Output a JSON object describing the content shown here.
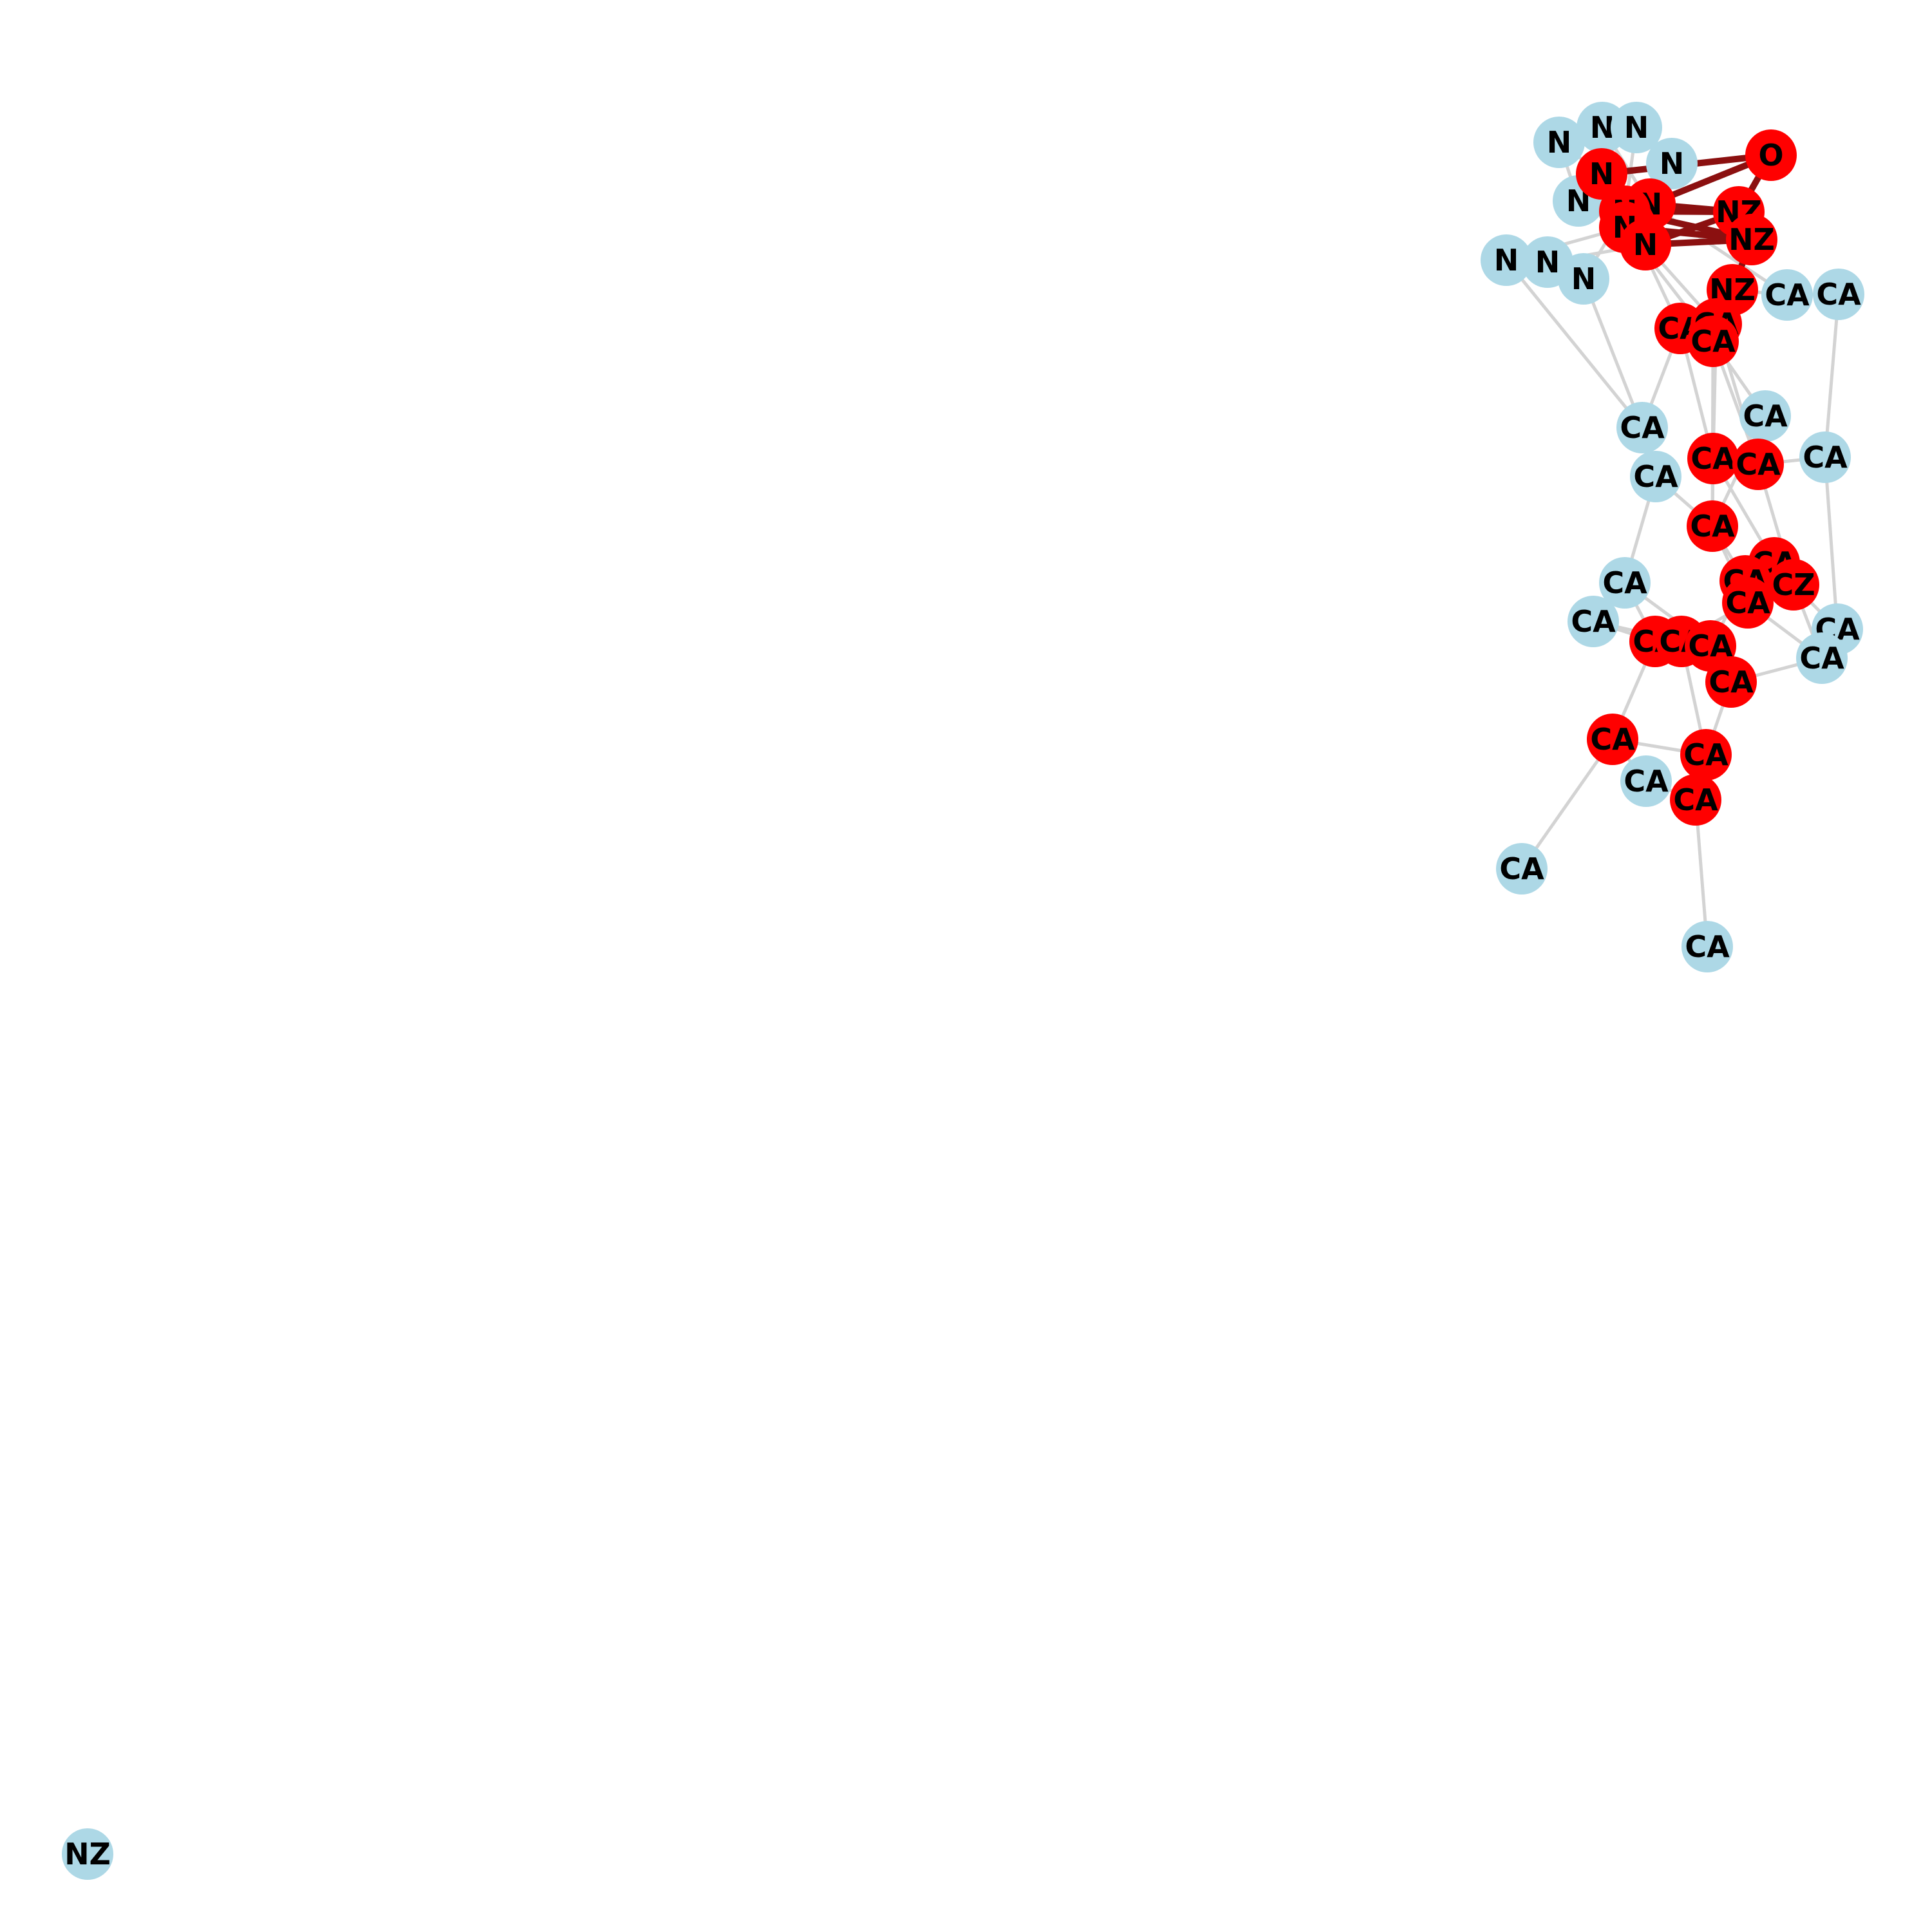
{
  "graph": {
    "colors": {
      "node_default": "#add8e6",
      "node_highlight": "#ff0000",
      "edge_default": "#d3d3d3",
      "edge_highlight": "#8b1010",
      "label": "#000000"
    },
    "nodes": [
      {
        "id": "n1",
        "label": "N",
        "highlighted": false
      },
      {
        "id": "n2",
        "label": "N",
        "highlighted": false
      },
      {
        "id": "n3",
        "label": "N",
        "highlighted": false
      },
      {
        "id": "n4",
        "label": "N",
        "highlighted": false
      },
      {
        "id": "n5",
        "label": "N",
        "highlighted": false
      },
      {
        "id": "n6",
        "label": "N",
        "highlighted": false
      },
      {
        "id": "n7",
        "label": "N",
        "highlighted": false
      },
      {
        "id": "n8",
        "label": "N",
        "highlighted": false
      },
      {
        "id": "n9",
        "label": "N",
        "highlighted": true
      },
      {
        "id": "n10",
        "label": "N",
        "highlighted": true
      },
      {
        "id": "n11",
        "label": "N",
        "highlighted": true
      },
      {
        "id": "n12",
        "label": "N",
        "highlighted": true
      },
      {
        "id": "n13",
        "label": "N",
        "highlighted": true
      },
      {
        "id": "o1",
        "label": "O",
        "highlighted": true
      },
      {
        "id": "nz1",
        "label": "NZ",
        "highlighted": true
      },
      {
        "id": "nz2",
        "label": "NZ",
        "highlighted": true
      },
      {
        "id": "nz3",
        "label": "NZ",
        "highlighted": true
      },
      {
        "id": "ca1",
        "label": "CA",
        "highlighted": false
      },
      {
        "id": "ca2",
        "label": "CA",
        "highlighted": false
      },
      {
        "id": "ca3",
        "label": "CA",
        "highlighted": true
      },
      {
        "id": "ca4",
        "label": "CA",
        "highlighted": true
      },
      {
        "id": "ca5",
        "label": "CA",
        "highlighted": true
      },
      {
        "id": "ca6",
        "label": "CA",
        "highlighted": false
      },
      {
        "id": "ca7",
        "label": "CA",
        "highlighted": false
      },
      {
        "id": "ca8",
        "label": "CA",
        "highlighted": false
      },
      {
        "id": "ca9",
        "label": "CA",
        "highlighted": true
      },
      {
        "id": "ca10",
        "label": "CA",
        "highlighted": true
      },
      {
        "id": "ca11",
        "label": "CA",
        "highlighted": false
      },
      {
        "id": "ca12",
        "label": "CA",
        "highlighted": true
      },
      {
        "id": "ca13",
        "label": "CA",
        "highlighted": true
      },
      {
        "id": "cz1",
        "label": "CZ",
        "highlighted": true
      },
      {
        "id": "ca14",
        "label": "CA",
        "highlighted": true
      },
      {
        "id": "ca15",
        "label": "CA",
        "highlighted": true
      },
      {
        "id": "ca16",
        "label": "CA",
        "highlighted": false
      },
      {
        "id": "ca17",
        "label": "CA",
        "highlighted": false
      },
      {
        "id": "ca18",
        "label": "CA",
        "highlighted": false
      },
      {
        "id": "ca19",
        "label": "CA",
        "highlighted": false
      },
      {
        "id": "ca20",
        "label": "CA",
        "highlighted": true
      },
      {
        "id": "ca21",
        "label": "CA",
        "highlighted": true
      },
      {
        "id": "ca22",
        "label": "CA",
        "highlighted": true
      },
      {
        "id": "ca23",
        "label": "CA",
        "highlighted": true
      },
      {
        "id": "ca24",
        "label": "CA",
        "highlighted": true
      },
      {
        "id": "ca25",
        "label": "CA",
        "highlighted": true
      },
      {
        "id": "ca26",
        "label": "CA",
        "highlighted": false
      },
      {
        "id": "ca27",
        "label": "CA",
        "highlighted": true
      },
      {
        "id": "ca28",
        "label": "CA",
        "highlighted": false
      },
      {
        "id": "ca29",
        "label": "CA",
        "highlighted": false
      },
      {
        "id": "nz4",
        "label": "NZ",
        "highlighted": false
      }
    ],
    "edges": [
      [
        "n9",
        "o1",
        true
      ],
      [
        "n10",
        "o1",
        true
      ],
      [
        "o1",
        "nz1",
        true
      ],
      [
        "n10",
        "nz1",
        true
      ],
      [
        "n11",
        "nz1",
        true
      ],
      [
        "n12",
        "nz2",
        true
      ],
      [
        "n13",
        "nz2",
        true
      ],
      [
        "n11",
        "nz2",
        true
      ],
      [
        "nz1",
        "nz2",
        true
      ],
      [
        "nz2",
        "nz3",
        true
      ],
      [
        "nz3",
        "ca4",
        true
      ],
      [
        "nz3",
        "ca3",
        true
      ],
      [
        "n13",
        "nz1",
        true
      ],
      [
        "n1",
        "n9",
        false
      ],
      [
        "n2",
        "n10",
        false
      ],
      [
        "n3",
        "n11",
        false
      ],
      [
        "n4",
        "n12",
        false
      ],
      [
        "n5",
        "n13",
        false
      ],
      [
        "n6",
        "n12",
        false
      ],
      [
        "n7",
        "n13",
        false
      ],
      [
        "n8",
        "n11",
        false
      ],
      [
        "n6",
        "ca7",
        false
      ],
      [
        "n8",
        "ca7",
        false
      ],
      [
        "n2",
        "n3",
        false
      ],
      [
        "n1",
        "n5",
        false
      ],
      [
        "n6",
        "n7",
        false
      ],
      [
        "n9",
        "n10",
        false
      ],
      [
        "n12",
        "n13",
        false
      ],
      [
        "n11",
        "ca3",
        false
      ],
      [
        "n13",
        "ca4",
        false
      ],
      [
        "n12",
        "ca5",
        false
      ],
      [
        "n10",
        "ca1",
        false
      ],
      [
        "ca1",
        "ca2",
        false
      ],
      [
        "ca1",
        "nz3",
        false
      ],
      [
        "ca2",
        "ca8",
        false
      ],
      [
        "ca3",
        "ca9",
        false
      ],
      [
        "ca4",
        "ca10",
        false
      ],
      [
        "ca5",
        "ca12",
        false
      ],
      [
        "ca3",
        "ca7",
        false
      ],
      [
        "ca5",
        "ca6",
        false
      ],
      [
        "ca7",
        "ca11",
        false
      ],
      [
        "ca9",
        "ca10",
        false
      ],
      [
        "ca10",
        "ca8",
        false
      ],
      [
        "ca9",
        "ca12",
        false
      ],
      [
        "ca9",
        "ca13",
        false
      ],
      [
        "ca10",
        "cz1",
        false
      ],
      [
        "ca11",
        "ca12",
        false
      ],
      [
        "ca11",
        "ca16",
        false
      ],
      [
        "ca12",
        "ca14",
        false
      ],
      [
        "ca12",
        "ca15",
        false
      ],
      [
        "ca13",
        "cz1",
        false
      ],
      [
        "ca13",
        "ca14",
        false
      ],
      [
        "cz1",
        "ca18",
        false
      ],
      [
        "cz1",
        "ca19",
        false
      ],
      [
        "ca14",
        "ca22",
        false
      ],
      [
        "ca15",
        "ca21",
        false
      ],
      [
        "ca15",
        "ca19",
        false
      ],
      [
        "ca16",
        "ca20",
        false
      ],
      [
        "ca17",
        "ca20",
        false
      ],
      [
        "ca20",
        "ca21",
        false
      ],
      [
        "ca21",
        "ca22",
        false
      ],
      [
        "ca22",
        "ca23",
        false
      ],
      [
        "ca23",
        "ca19",
        false
      ],
      [
        "ca20",
        "ca24",
        false
      ],
      [
        "ca21",
        "ca25",
        false
      ],
      [
        "ca23",
        "ca25",
        false
      ],
      [
        "ca24",
        "ca26",
        false
      ],
      [
        "ca24",
        "ca25",
        false
      ],
      [
        "ca25",
        "ca27",
        false
      ],
      [
        "ca26",
        "ca27",
        false
      ],
      [
        "ca24",
        "ca28",
        false
      ],
      [
        "ca27",
        "ca29",
        false
      ],
      [
        "ca8",
        "ca18",
        false
      ],
      [
        "ca18",
        "ca19",
        false
      ],
      [
        "ca6",
        "ca12",
        false
      ],
      [
        "ca4",
        "ca9",
        false
      ],
      [
        "ca5",
        "ca10",
        false
      ],
      [
        "ca17",
        "ca21",
        false
      ],
      [
        "ca16",
        "ca22",
        false
      ]
    ]
  }
}
